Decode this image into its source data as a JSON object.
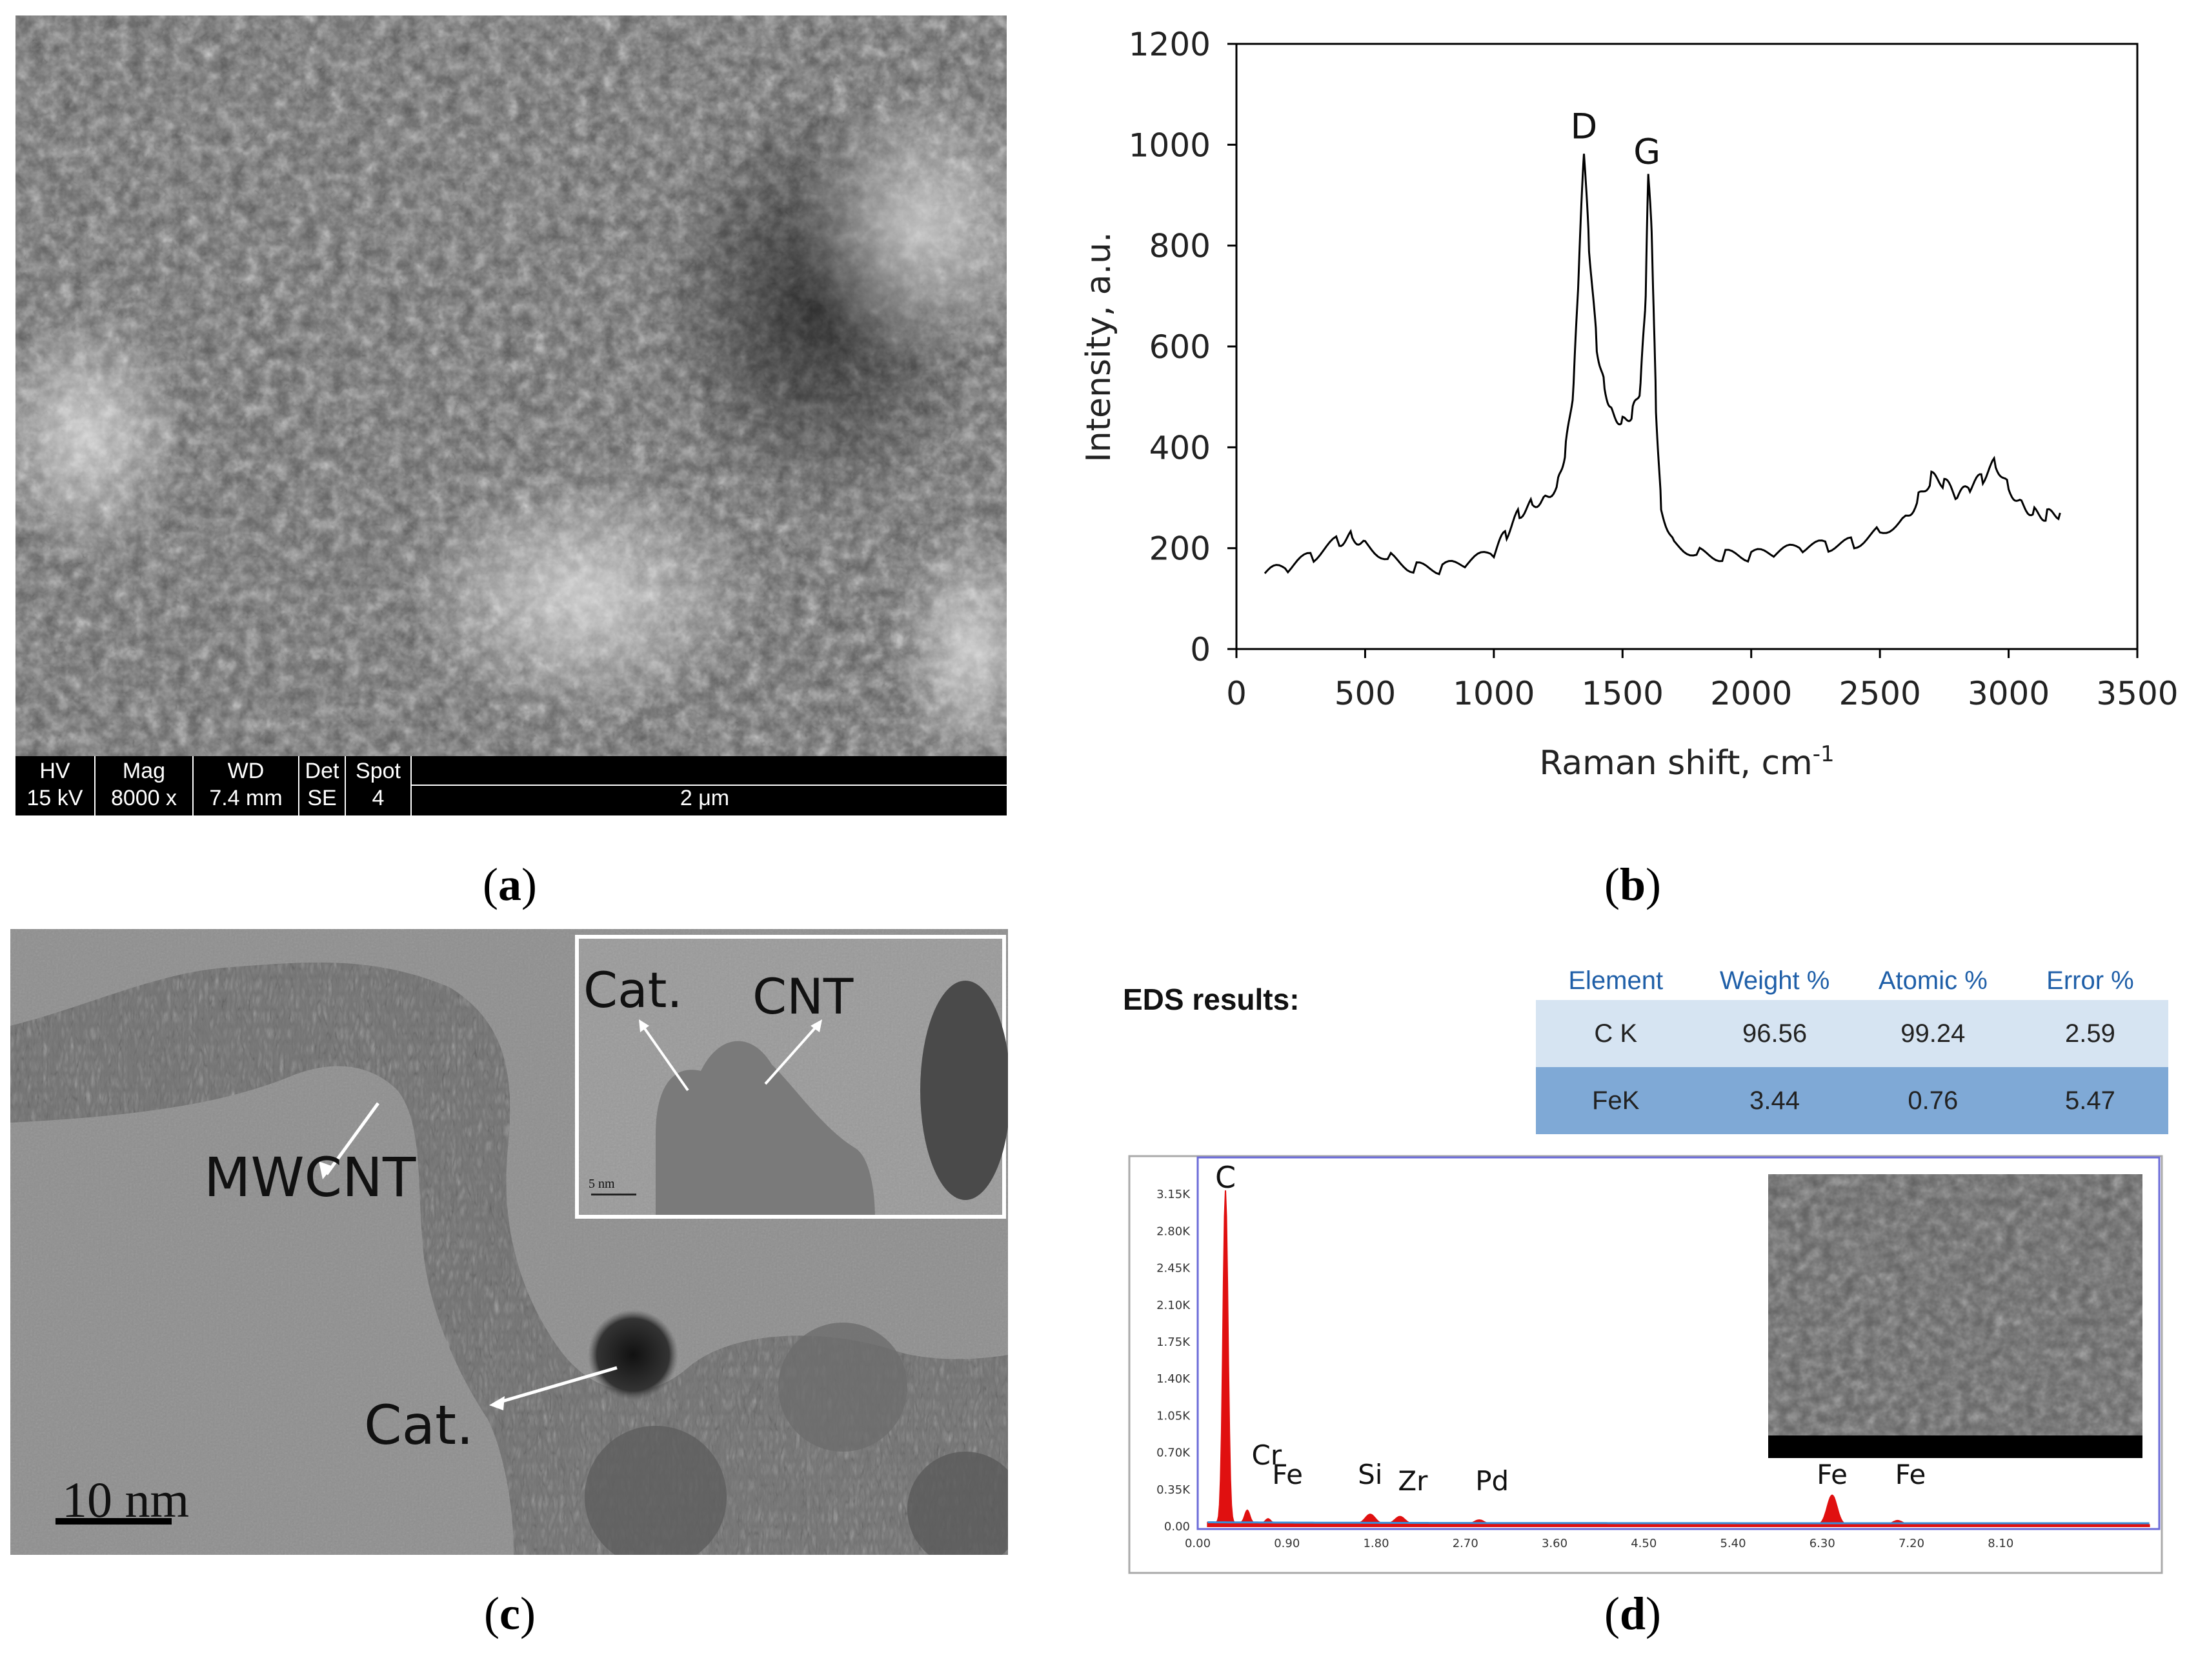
{
  "captions": {
    "a": "a",
    "b": "b",
    "c": "c",
    "d": "d"
  },
  "sem": {
    "databar": [
      {
        "label": "HV",
        "value": "15 kV"
      },
      {
        "label": "Mag",
        "value": "8000 x"
      },
      {
        "label": "WD",
        "value": "7.4 mm"
      },
      {
        "label": "Det",
        "value": "SE"
      },
      {
        "label": "Spot",
        "value": "4"
      }
    ],
    "scale": "2 μm"
  },
  "tem": {
    "label_mwcnt": "MWCNT",
    "label_cat": "Cat.",
    "scale": "10 nm",
    "inset": {
      "label_cat": "Cat.",
      "label_cnt": "CNT",
      "scale": "5 nm"
    }
  },
  "eds": {
    "title": "EDS results:",
    "table": {
      "headers": [
        "Element",
        "Weight %",
        "Atomic %",
        "Error %"
      ],
      "rows": [
        [
          "C K",
          "96.56",
          "99.24",
          "2.59"
        ],
        [
          "FeK",
          "3.44",
          "0.76",
          "5.47"
        ]
      ]
    },
    "spectrum": {
      "y_ticks": [
        "3.15K",
        "2.80K",
        "2.45K",
        "2.10K",
        "1.75K",
        "1.40K",
        "1.05K",
        "0.70K",
        "0.35K",
        "0.00"
      ],
      "x_ticks": [
        "0.00",
        "0.90",
        "1.80",
        "2.70",
        "3.60",
        "4.50",
        "5.40",
        "6.30",
        "7.20",
        "8.10"
      ],
      "peaks": [
        {
          "label": "C",
          "energy": 0.28,
          "counts": 3150
        },
        {
          "label": "Cr",
          "energy": 0.5,
          "counts": 120
        },
        {
          "label": "Fe",
          "energy": 0.71,
          "counts": 40
        },
        {
          "label": "Si",
          "energy": 1.74,
          "counts": 90
        },
        {
          "label": "Zr",
          "energy": 2.04,
          "counts": 70
        },
        {
          "label": "Pd",
          "energy": 2.84,
          "counts": 40
        },
        {
          "label": "Fe",
          "energy": 6.4,
          "counts": 280
        },
        {
          "label": "Fe",
          "energy": 7.06,
          "counts": 40
        }
      ]
    }
  },
  "chart_data": {
    "type": "line",
    "xlabel": "Raman shift, cm-1",
    "ylabel": "Intensity, a.u.",
    "xlim": [
      0,
      3500
    ],
    "ylim": [
      0,
      1200
    ],
    "x_ticks": [
      0,
      500,
      1000,
      1500,
      2000,
      2500,
      3000,
      3500
    ],
    "y_ticks": [
      0,
      200,
      400,
      600,
      800,
      1000,
      1200
    ],
    "annotations": [
      {
        "text": "D",
        "x": 1350,
        "y": 1000
      },
      {
        "text": "G",
        "x": 1595,
        "y": 950
      }
    ],
    "series": [
      {
        "x": [
          110,
          200,
          300,
          400,
          450,
          500,
          600,
          700,
          800,
          900,
          1000,
          1050,
          1100,
          1150,
          1200,
          1250,
          1280,
          1310,
          1330,
          1350,
          1370,
          1400,
          1430,
          1460,
          1500,
          1540,
          1570,
          1590,
          1600,
          1615,
          1630,
          1650,
          1700,
          1800,
          1900,
          2000,
          2100,
          2200,
          2300,
          2400,
          2500,
          2600,
          2650,
          2700,
          2750,
          2800,
          2850,
          2900,
          2950,
          3000,
          3050,
          3100,
          3150,
          3200
        ],
        "y": [
          150,
          160,
          185,
          215,
          225,
          210,
          180,
          160,
          160,
          170,
          190,
          230,
          270,
          290,
          300,
          330,
          400,
          520,
          750,
          990,
          800,
          600,
          520,
          470,
          450,
          470,
          520,
          700,
          950,
          800,
          480,
          280,
          210,
          190,
          185,
          185,
          190,
          200,
          205,
          210,
          235,
          260,
          300,
          340,
          330,
          300,
          320,
          340,
          370,
          320,
          290,
          270,
          265,
          270
        ]
      }
    ]
  }
}
